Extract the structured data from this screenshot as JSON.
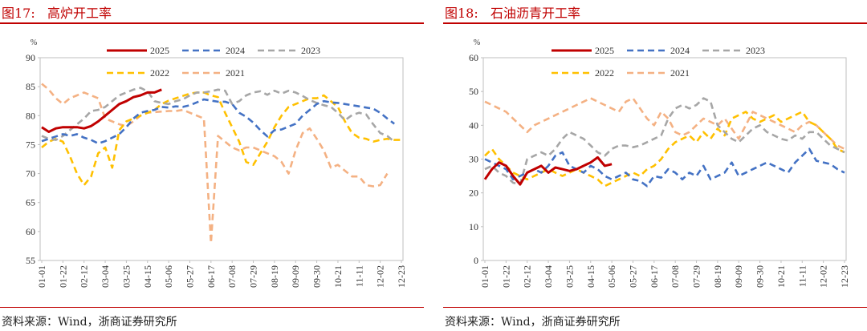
{
  "charts": [
    {
      "title": "图17:   高炉开工率",
      "source": "资料来源：Wind，浙商证券研究所",
      "chart_data": {
        "type": "line",
        "title": "高炉开工率",
        "unit_label": "%",
        "ylim": [
          55,
          90
        ],
        "yticks": [
          55,
          60,
          65,
          70,
          75,
          80,
          85,
          90
        ],
        "xlabels": [
          "01-01",
          "01-22",
          "02-12",
          "03-04",
          "03-25",
          "04-15",
          "05-06",
          "05-27",
          "06-17",
          "07-08",
          "07-29",
          "08-19",
          "09-09",
          "09-30",
          "10-21",
          "11-11",
          "12-02",
          "12-23"
        ],
        "n_points": 52,
        "series": [
          {
            "name": "2025",
            "color": "#c00000",
            "dash": "solid",
            "values": [
              78,
              77.2,
              77.8,
              78,
              78,
              78,
              77.8,
              78.2,
              79,
              80,
              81,
              82,
              82.5,
              83.2,
              83.5,
              84,
              84,
              84.5
            ]
          },
          {
            "name": "2024",
            "color": "#4472c4",
            "dash": "dash",
            "values": [
              75.6,
              76,
              76.4,
              76.8,
              76.5,
              76.8,
              76.2,
              75.8,
              75.2,
              75.6,
              76.2,
              76.8,
              78,
              79.5,
              80.5,
              80.8,
              81,
              81.5,
              81.4,
              81.6,
              81.5,
              81.8,
              82.3,
              82.8,
              82.6,
              82.4,
              82.4,
              82,
              80.5,
              79.8,
              78.8,
              77.5,
              76.4,
              77.5,
              77.6,
              78.1,
              78.6,
              80,
              81,
              82,
              82.5,
              82.3,
              82.2,
              82,
              81.8,
              81.6,
              81.4,
              81.2,
              80.5,
              79.5,
              78.6,
              null
            ]
          },
          {
            "name": "2023",
            "color": "#a6a6a6",
            "dash": "dash",
            "values": [
              76.5,
              76,
              75.8,
              76.5,
              77.5,
              78.5,
              79.5,
              80.8,
              81,
              81.5,
              82.5,
              83.5,
              84,
              84.5,
              84.8,
              84.2,
              82.5,
              82.2,
              82,
              82.5,
              82.8,
              83.5,
              84,
              84,
              84.2,
              84.5,
              84.3,
              82,
              82.5,
              83.5,
              84,
              84.2,
              83.6,
              84.3,
              83.8,
              84.3,
              84,
              83.4,
              82.7,
              82.2,
              81.8,
              81.5,
              80.5,
              79.2,
              80.1,
              80.5,
              80.2,
              78.5,
              77,
              76.5,
              75.5,
              null
            ]
          },
          {
            "name": "2022",
            "color": "#ffc000",
            "dash": "dash",
            "values": [
              74.5,
              75.5,
              76,
              75.5,
              73,
              70,
              68,
              69.5,
              73.5,
              74.5,
              71,
              77.5,
              79,
              79.5,
              80,
              80.5,
              81,
              82,
              82.6,
              83,
              83.4,
              83.8,
              84,
              84,
              83.5,
              83.2,
              80.5,
              78,
              75.5,
              72,
              71.5,
              73.5,
              75.5,
              78,
              80,
              81.5,
              82,
              82.5,
              83,
              83,
              83.5,
              82.5,
              81.5,
              79,
              77,
              76.2,
              76,
              75.5,
              75.8,
              76,
              75.8,
              75.8
            ]
          },
          {
            "name": "2021",
            "color": "#f4b183",
            "dash": "dash",
            "values": [
              85.5,
              84.5,
              83,
              82,
              83,
              83.5,
              84,
              83.5,
              83,
              79.5,
              79,
              78.5,
              78.2,
              79,
              80,
              80.5,
              80.6,
              80.7,
              80.8,
              80.8,
              81,
              80.5,
              80,
              79.5,
              58,
              76.5,
              75.5,
              74.5,
              74,
              74.5,
              74.5,
              74,
              73.5,
              73,
              72,
              70,
              74,
              77,
              77.8,
              76,
              74,
              71,
              71.5,
              70.5,
              69.5,
              69.5,
              68,
              67.8,
              68,
              70,
              null,
              null
            ]
          }
        ]
      }
    },
    {
      "title": "图18:   石油沥青开工率",
      "source": "资料来源：Wind，浙商证券研究所",
      "chart_data": {
        "type": "line",
        "title": "石油沥青开工率",
        "unit_label": "%",
        "ylim": [
          0,
          60
        ],
        "yticks": [
          0,
          10,
          20,
          30,
          40,
          50,
          60
        ],
        "xlabels": [
          "01-01",
          "01-22",
          "02-12",
          "03-04",
          "03-25",
          "04-15",
          "05-06",
          "05-27",
          "06-17",
          "07-08",
          "07-29",
          "08-19",
          "09-09",
          "09-30",
          "10-21",
          "11-11",
          "12-02",
          "12-23"
        ],
        "n_points": 52,
        "series": [
          {
            "name": "2025",
            "color": "#c00000",
            "dash": "solid",
            "values": [
              24,
              27,
              29,
              28,
              25,
              22.5,
              26,
              27,
              28,
              26,
              27.5,
              27,
              26.5,
              27,
              28,
              29,
              30.5,
              28,
              28.5
            ]
          },
          {
            "name": "2024",
            "color": "#4472c4",
            "dash": "dash",
            "values": [
              30,
              29,
              28,
              27,
              24,
              25,
              26,
              27,
              26,
              28,
              31,
              32,
              28,
              27,
              26,
              28,
              27,
              25,
              24,
              25,
              26,
              24,
              23.5,
              22,
              25,
              24.5,
              27,
              26,
              24,
              26,
              25,
              28,
              24,
              25,
              26,
              29,
              25,
              26,
              27,
              28,
              29,
              28,
              27,
              26,
              29,
              31,
              33,
              29.5,
              29,
              28.5,
              27,
              26
            ]
          },
          {
            "name": "2023",
            "color": "#a6a6a6",
            "dash": "dash",
            "values": [
              27,
              28,
              26,
              25,
              23,
              22.5,
              30,
              31,
              32,
              31,
              33,
              36,
              38,
              37,
              36,
              34,
              32,
              31,
              33,
              34,
              34,
              33.5,
              34,
              35,
              36,
              37,
              42,
              45,
              46,
              45,
              46,
              48,
              47,
              40,
              38,
              36,
              35,
              37,
              39,
              40,
              38,
              37,
              36,
              35.5,
              37,
              36,
              38,
              38,
              36,
              34,
              33,
              32
            ]
          },
          {
            "name": "2022",
            "color": "#ffc000",
            "dash": "dash",
            "values": [
              31,
              33,
              30,
              28,
              26,
              25,
              24,
              25,
              26,
              27,
              26,
              25,
              26,
              27,
              26,
              25,
              24,
              22,
              23,
              24,
              25,
              26,
              25,
              27,
              28,
              30,
              33,
              35,
              36,
              37,
              35,
              38,
              36,
              39,
              37,
              42,
              43,
              44,
              42,
              41,
              42,
              43,
              41,
              42,
              43,
              44,
              41,
              40,
              38,
              36,
              33,
              32
            ]
          },
          {
            "name": "2021",
            "color": "#f4b183",
            "dash": "dash",
            "values": [
              47,
              46,
              45,
              44,
              42,
              40,
              38,
              40,
              41,
              42,
              43,
              44,
              45,
              46,
              47,
              48,
              47,
              46,
              45,
              44,
              47,
              48,
              45,
              42,
              40,
              44,
              42,
              38,
              37,
              38,
              40,
              42,
              41,
              40,
              42,
              39,
              36,
              40,
              44,
              43,
              42,
              41,
              40,
              39,
              38,
              40,
              41,
              40,
              38,
              36,
              34,
              33
            ]
          }
        ]
      }
    }
  ]
}
